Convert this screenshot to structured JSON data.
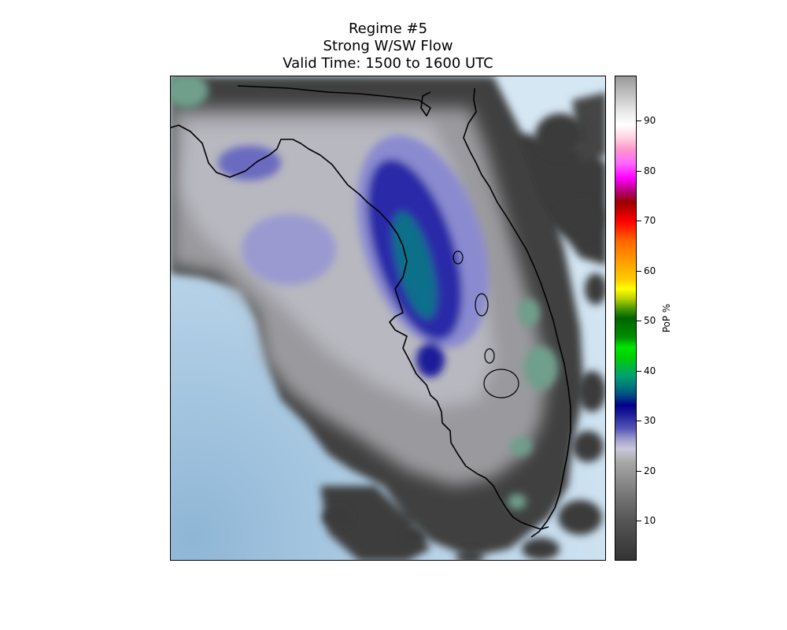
{
  "title": {
    "line1": "Regime #5",
    "line2": "Strong W/SW Flow",
    "line3": "Valid Time: 1500 to 1600 UTC"
  },
  "colorbar": {
    "label": "PoP %",
    "ticks": [
      "10",
      "20",
      "30",
      "40",
      "50",
      "60",
      "70",
      "80",
      "90"
    ],
    "range": [
      2,
      99
    ]
  },
  "colors": {
    "ocean_light": "#c8dff0",
    "ocean_dark": "#8fb6d6",
    "land_green": "#6f9f8c",
    "pop_low": "#3c3c3c",
    "pop_mid": "#b4b4bc",
    "pop_blue": "#1f1fa0",
    "pop_teal": "#0e7a82"
  }
}
